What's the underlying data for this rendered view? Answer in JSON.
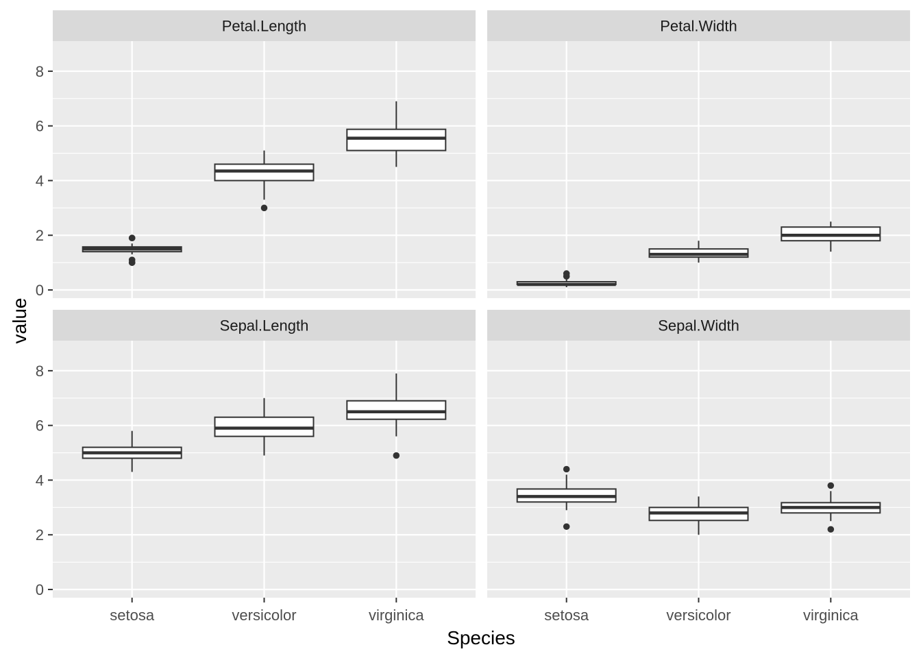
{
  "chart_data": {
    "type": "boxplot",
    "xlabel": "Species",
    "ylabel": "value",
    "categories": [
      "setosa",
      "versicolor",
      "virginica"
    ],
    "y_ticks": [
      0,
      2,
      4,
      6,
      8
    ],
    "ylim": [
      -0.3,
      9.1
    ],
    "facets": [
      {
        "name": "Petal.Length",
        "boxes": [
          {
            "category": "setosa",
            "lower_whisker": 1.3,
            "q1": 1.4,
            "median": 1.5,
            "q3": 1.575,
            "upper_whisker": 1.7,
            "outliers": [
              1.9,
              1.9,
              1.1,
              1.0,
              1.0
            ]
          },
          {
            "category": "versicolor",
            "lower_whisker": 3.3,
            "q1": 4.0,
            "median": 4.35,
            "q3": 4.6,
            "upper_whisker": 5.1,
            "outliers": [
              3.0
            ]
          },
          {
            "category": "virginica",
            "lower_whisker": 4.5,
            "q1": 5.1,
            "median": 5.55,
            "q3": 5.875,
            "upper_whisker": 6.9,
            "outliers": []
          }
        ]
      },
      {
        "name": "Petal.Width",
        "boxes": [
          {
            "category": "setosa",
            "lower_whisker": 0.1,
            "q1": 0.2,
            "median": 0.2,
            "q3": 0.3,
            "upper_whisker": 0.4,
            "outliers": [
              0.5,
              0.6
            ]
          },
          {
            "category": "versicolor",
            "lower_whisker": 1.0,
            "q1": 1.2,
            "median": 1.3,
            "q3": 1.5,
            "upper_whisker": 1.8,
            "outliers": []
          },
          {
            "category": "virginica",
            "lower_whisker": 1.4,
            "q1": 1.8,
            "median": 2.0,
            "q3": 2.3,
            "upper_whisker": 2.5,
            "outliers": []
          }
        ]
      },
      {
        "name": "Sepal.Length",
        "boxes": [
          {
            "category": "setosa",
            "lower_whisker": 4.3,
            "q1": 4.8,
            "median": 5.0,
            "q3": 5.2,
            "upper_whisker": 5.8,
            "outliers": []
          },
          {
            "category": "versicolor",
            "lower_whisker": 4.9,
            "q1": 5.6,
            "median": 5.9,
            "q3": 6.3,
            "upper_whisker": 7.0,
            "outliers": []
          },
          {
            "category": "virginica",
            "lower_whisker": 5.6,
            "q1": 6.225,
            "median": 6.5,
            "q3": 6.9,
            "upper_whisker": 7.9,
            "outliers": [
              4.9
            ]
          }
        ]
      },
      {
        "name": "Sepal.Width",
        "boxes": [
          {
            "category": "setosa",
            "lower_whisker": 2.9,
            "q1": 3.2,
            "median": 3.4,
            "q3": 3.675,
            "upper_whisker": 4.2,
            "outliers": [
              4.4,
              2.3
            ]
          },
          {
            "category": "versicolor",
            "lower_whisker": 2.0,
            "q1": 2.525,
            "median": 2.8,
            "q3": 3.0,
            "upper_whisker": 3.4,
            "outliers": []
          },
          {
            "category": "virginica",
            "lower_whisker": 2.5,
            "q1": 2.8,
            "median": 3.0,
            "q3": 3.175,
            "upper_whisker": 3.6,
            "outliers": [
              3.8,
              2.2
            ]
          }
        ]
      }
    ],
    "colors": {
      "panel_bg": "#ebebeb",
      "strip_bg": "#d9d9d9",
      "grid": "#ffffff",
      "box_fill": "#ffffff",
      "box_stroke": "#333333",
      "tick_color": "#333333"
    }
  }
}
